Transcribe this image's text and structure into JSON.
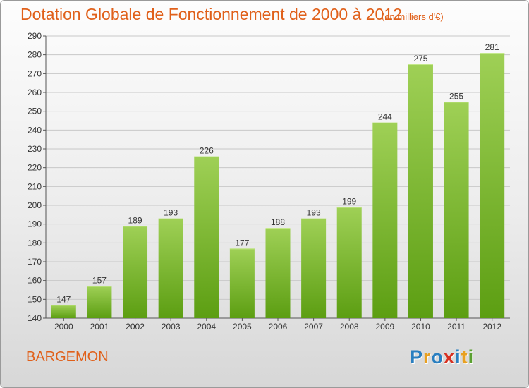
{
  "header": {
    "title": "Dotation Globale de Fonctionnement de 2000 à 2012",
    "unit": "(en milliers d'€)"
  },
  "footer": {
    "commune": "BARGEMON",
    "logo_text": "Proxiti",
    "logo_letters": [
      {
        "char": "P",
        "color": "#2a7fc0"
      },
      {
        "char": "r",
        "color": "#e8a020"
      },
      {
        "char": "o",
        "color": "#2a7fc0"
      },
      {
        "char": "x",
        "color": "#d83020"
      },
      {
        "char": "i",
        "color": "#2a7fc0"
      },
      {
        "char": "t",
        "color": "#e8a020"
      },
      {
        "char": "i",
        "color": "#5aa030"
      }
    ]
  },
  "colors": {
    "title": "#e0601a",
    "bar_top": "#9fd056",
    "bar_bottom": "#5c9e12",
    "grid": "#c8c8c8"
  },
  "chart_data": {
    "type": "bar",
    "title": "Dotation Globale de Fonctionnement de 2000 à 2012",
    "subtitle": "(en milliers d'€)",
    "categories": [
      "2000",
      "2001",
      "2002",
      "2003",
      "2004",
      "2005",
      "2006",
      "2007",
      "2008",
      "2009",
      "2010",
      "2011",
      "2012"
    ],
    "values": [
      147,
      157,
      189,
      193,
      226,
      177,
      188,
      193,
      199,
      244,
      275,
      255,
      281
    ],
    "ylim": [
      140,
      290
    ],
    "yticks": [
      140,
      150,
      160,
      170,
      180,
      190,
      200,
      210,
      220,
      230,
      240,
      250,
      260,
      270,
      280,
      290
    ],
    "grid": true,
    "data_labels": true
  }
}
